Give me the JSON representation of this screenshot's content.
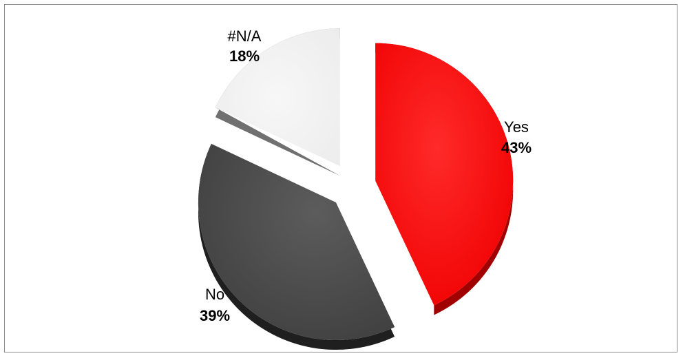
{
  "chart_data": {
    "type": "pie",
    "title": "",
    "categories": [
      "Yes",
      "No",
      "#N/A"
    ],
    "values": [
      43,
      39,
      18
    ],
    "labels": [
      "43%",
      "39%",
      "18%"
    ],
    "colors": [
      "#ff0000",
      "#4d4d4d",
      "#f2f2f2"
    ],
    "exploded": true,
    "style": "3d"
  }
}
